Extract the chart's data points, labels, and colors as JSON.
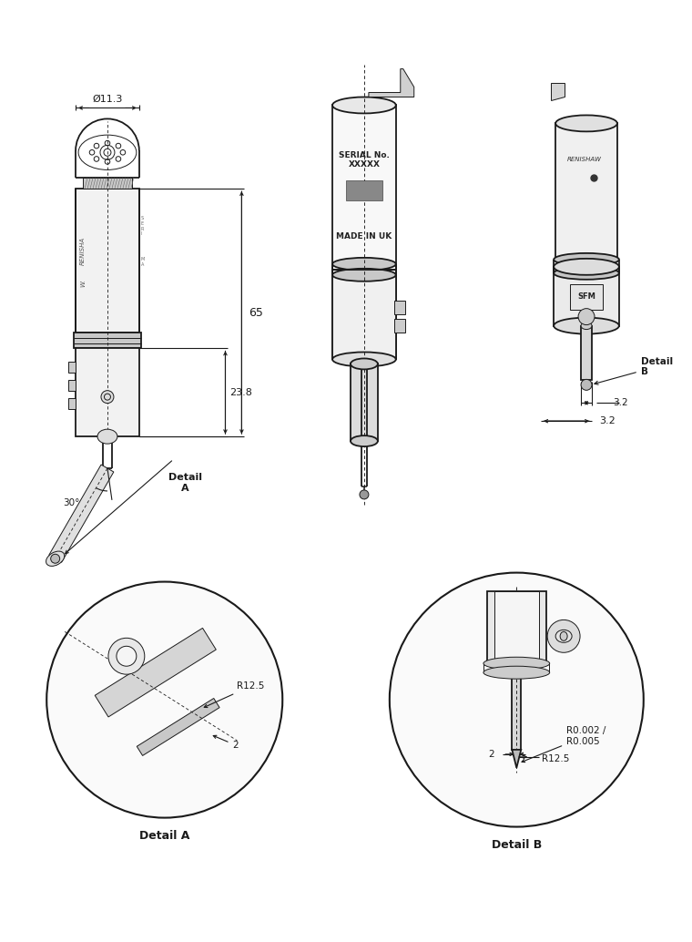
{
  "bg_color": "#ffffff",
  "lc": "#1a1a1a",
  "lw_main": 1.3,
  "lw_thin": 0.7,
  "lw_dim": 0.8,
  "dim_11_3": "Ø11.3",
  "dim_65": "65",
  "dim_23_8": "23.8",
  "dim_30": "30°",
  "dim_3_2": "3.2",
  "detail_a_label": "Detail\nA",
  "detail_b_label": "Detail\nB",
  "label_detail_a": "Detail A",
  "label_detail_b": "Detail B",
  "dim_r12_5": "R12.5",
  "dim_2": "2",
  "dim_r0002": "R0.002 /",
  "dim_r0005": "R0.005",
  "serial_text": "SERIAL No.\nXXXXX",
  "made_in_uk": "MADE IN UK",
  "renishaw_text": "RENISHAW",
  "sfm_text": "SFM",
  "body_gray": "#f2f2f2",
  "dark_gray": "#c8c8c8",
  "mid_gray": "#e0e0e0"
}
